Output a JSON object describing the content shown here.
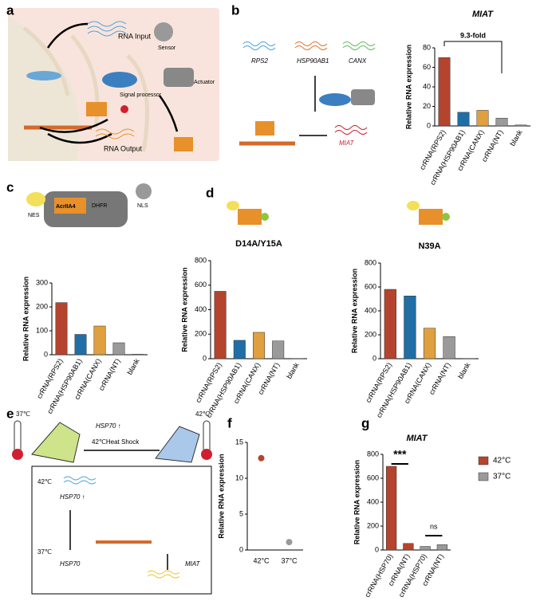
{
  "panel_letters": [
    "a",
    "b",
    "c",
    "d",
    "e",
    "f",
    "g"
  ],
  "diagram_a": [
    "RNA Input",
    "Sensor",
    "Actuator",
    "Signal processor",
    "RNA Output"
  ],
  "diagram_b": [
    "RPS2",
    "HSP90AB1",
    "CANX",
    "MIAT"
  ],
  "diagram_c": [
    "NES",
    "AcrIIA4",
    "DHFR",
    "NLS"
  ],
  "diagram_e": [
    "37℃",
    "HSP70 ↑",
    "42℃Heat Shock",
    "42℃",
    "42℃",
    "HSP70 ↑",
    "37℃",
    "HSP70",
    "MIAT"
  ],
  "chart_data": [
    {
      "type": "bar",
      "title": "MIAT",
      "y_label": "Relative RNA expression",
      "categories": [
        "crRNA(RPS2)",
        "crRNA(HSP90AB1)",
        "crRNA(CANX)",
        "crRNA(NT)",
        "blank"
      ],
      "values": [
        70,
        14,
        16,
        8,
        1
      ],
      "colors": [
        "#b5442f",
        "#1f6fa6",
        "#e0a040",
        "#9a9a9a",
        "#9a9a9a"
      ],
      "ylim": [
        0,
        80
      ],
      "yticks": [
        0,
        20,
        40,
        60,
        80
      ],
      "annotations": [
        "9.3-fold"
      ]
    },
    {
      "type": "bar",
      "y_label": "Relative RNA expression",
      "categories": [
        "crRNA(RPS2)",
        "crRNA(HSP90AB1)",
        "crRNA(CANX)",
        "crRNA(NT)",
        "blank"
      ],
      "values": [
        218,
        85,
        120,
        50,
        2
      ],
      "colors": [
        "#b5442f",
        "#1f6fa6",
        "#e0a040",
        "#9a9a9a",
        "#9a9a9a"
      ],
      "ylim": [
        0,
        300
      ],
      "yticks": [
        0,
        100,
        200,
        300
      ]
    },
    {
      "type": "bar",
      "title": "D14A/Y15A",
      "y_label": "Relative RNA expression",
      "categories": [
        "crRNA(RPS2)",
        "crRNA(HSP90AB1)",
        "crRNA(CANX)",
        "crRNA(NT)",
        "blank"
      ],
      "values": [
        550,
        150,
        215,
        145,
        2
      ],
      "colors": [
        "#b5442f",
        "#1f6fa6",
        "#e0a040",
        "#9a9a9a",
        "#9a9a9a"
      ],
      "ylim": [
        0,
        800
      ],
      "yticks": [
        0,
        200,
        400,
        600,
        800
      ]
    },
    {
      "type": "bar",
      "title": "N39A",
      "y_label": "Relative RNA expression",
      "categories": [
        "crRNA(RPS2)",
        "crRNA(HSP90AB1)",
        "crRNA(CANX)",
        "crRNA(NT)",
        "blank"
      ],
      "values": [
        580,
        525,
        255,
        185,
        2
      ],
      "colors": [
        "#b5442f",
        "#1f6fa6",
        "#e0a040",
        "#9a9a9a",
        "#9a9a9a"
      ],
      "ylim": [
        0,
        800
      ],
      "yticks": [
        0,
        200,
        400,
        600,
        800
      ]
    },
    {
      "type": "dot",
      "y_label": "Relative RNA expression",
      "categories": [
        "42°C",
        "37°C"
      ],
      "values": [
        12.8,
        1.1
      ],
      "colors": [
        "#b5442f",
        "#9a9a9a"
      ],
      "ylim": [
        0,
        15
      ],
      "yticks": [
        0,
        5,
        10,
        15
      ]
    },
    {
      "type": "bar",
      "title": "MIAT",
      "y_label": "Relative RNA expression",
      "categories": [
        "crRNA(HSP70)",
        "crRNA(NT)",
        "crRNA(HSP70)",
        "crRNA(NT)"
      ],
      "series": [
        {
          "name": "42°C",
          "color": "#b5442f",
          "values": [
            700,
            55,
            null,
            null
          ]
        },
        {
          "name": "37°C",
          "color": "#9a9a9a",
          "values": [
            null,
            null,
            30,
            45
          ]
        }
      ],
      "ylim": [
        0,
        800
      ],
      "yticks": [
        0,
        200,
        400,
        600,
        800
      ],
      "annotations": [
        "***",
        "ns"
      ]
    }
  ]
}
